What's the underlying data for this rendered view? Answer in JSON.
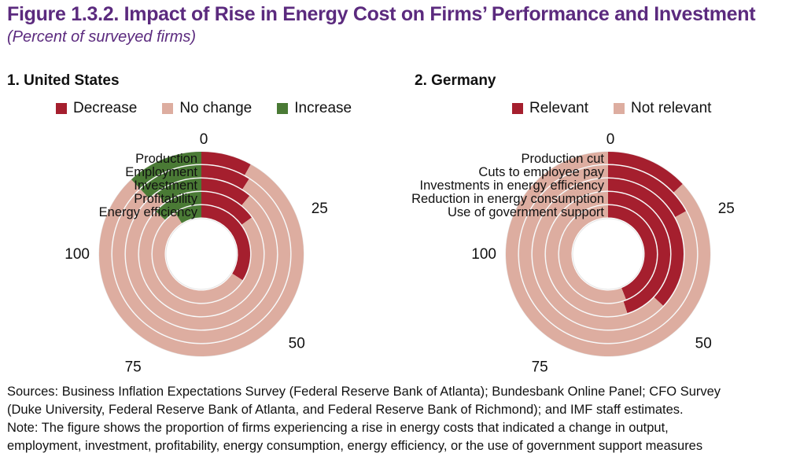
{
  "figure": {
    "title": "Figure 1.3.2. Impact of Rise in Energy Cost on Firms’ Performance and Investment",
    "subtitle": "(Percent of surveyed firms)"
  },
  "chart_data": [
    {
      "type": "radial-bar",
      "title": "1. United States",
      "scale_ticks": [
        "0",
        "25",
        "50",
        "75",
        "100"
      ],
      "axis_range": [
        0,
        100
      ],
      "legend": [
        {
          "name": "Decrease",
          "color": "#a51f2e"
        },
        {
          "name": "No change",
          "color": "#ddada0"
        },
        {
          "name": "Increase",
          "color": "#4a7a35"
        }
      ],
      "categories": [
        "Production",
        "Employment",
        "Investment",
        "Profitability",
        "Energy efficiency"
      ],
      "series": [
        {
          "name": "Decrease",
          "values": [
            8,
            9,
            11,
            15,
            34
          ]
        },
        {
          "name": "No change",
          "values": [
            80,
            79,
            79,
            72,
            57
          ]
        },
        {
          "name": "Increase",
          "values": [
            12,
            12,
            10,
            13,
            9
          ]
        }
      ]
    },
    {
      "type": "radial-bar",
      "title": "2. Germany",
      "scale_ticks": [
        "0",
        "25",
        "50",
        "75",
        "100"
      ],
      "axis_range": [
        0,
        100
      ],
      "legend": [
        {
          "name": "Relevant",
          "color": "#a51f2e"
        },
        {
          "name": "Not relevant",
          "color": "#ddada0"
        }
      ],
      "categories": [
        "Production cut",
        "Cuts to employee pay",
        "Investments in energy efficiency",
        "Reduction in energy consumption",
        "Use of government support"
      ],
      "series": [
        {
          "name": "Relevant",
          "values": [
            13,
            17,
            37,
            45,
            44
          ]
        },
        {
          "name": "Not relevant",
          "values": [
            87,
            83,
            63,
            55,
            56
          ]
        }
      ]
    }
  ],
  "notes": {
    "sources_line1": "Sources: Business Inflation Expectations Survey (Federal Reserve Bank of Atlanta); Bundesbank Online Panel; CFO Survey",
    "sources_line2": "(Duke University, Federal Reserve Bank of Atlanta, and Federal Reserve Bank of Richmond); and IMF staff estimates.",
    "note_line1": "Note: The figure shows the proportion of firms experiencing a rise in energy costs that indicated a change in output,",
    "note_line2": "employment, investment, profitability, energy consumption, energy efficiency, or the use of government support measures"
  }
}
